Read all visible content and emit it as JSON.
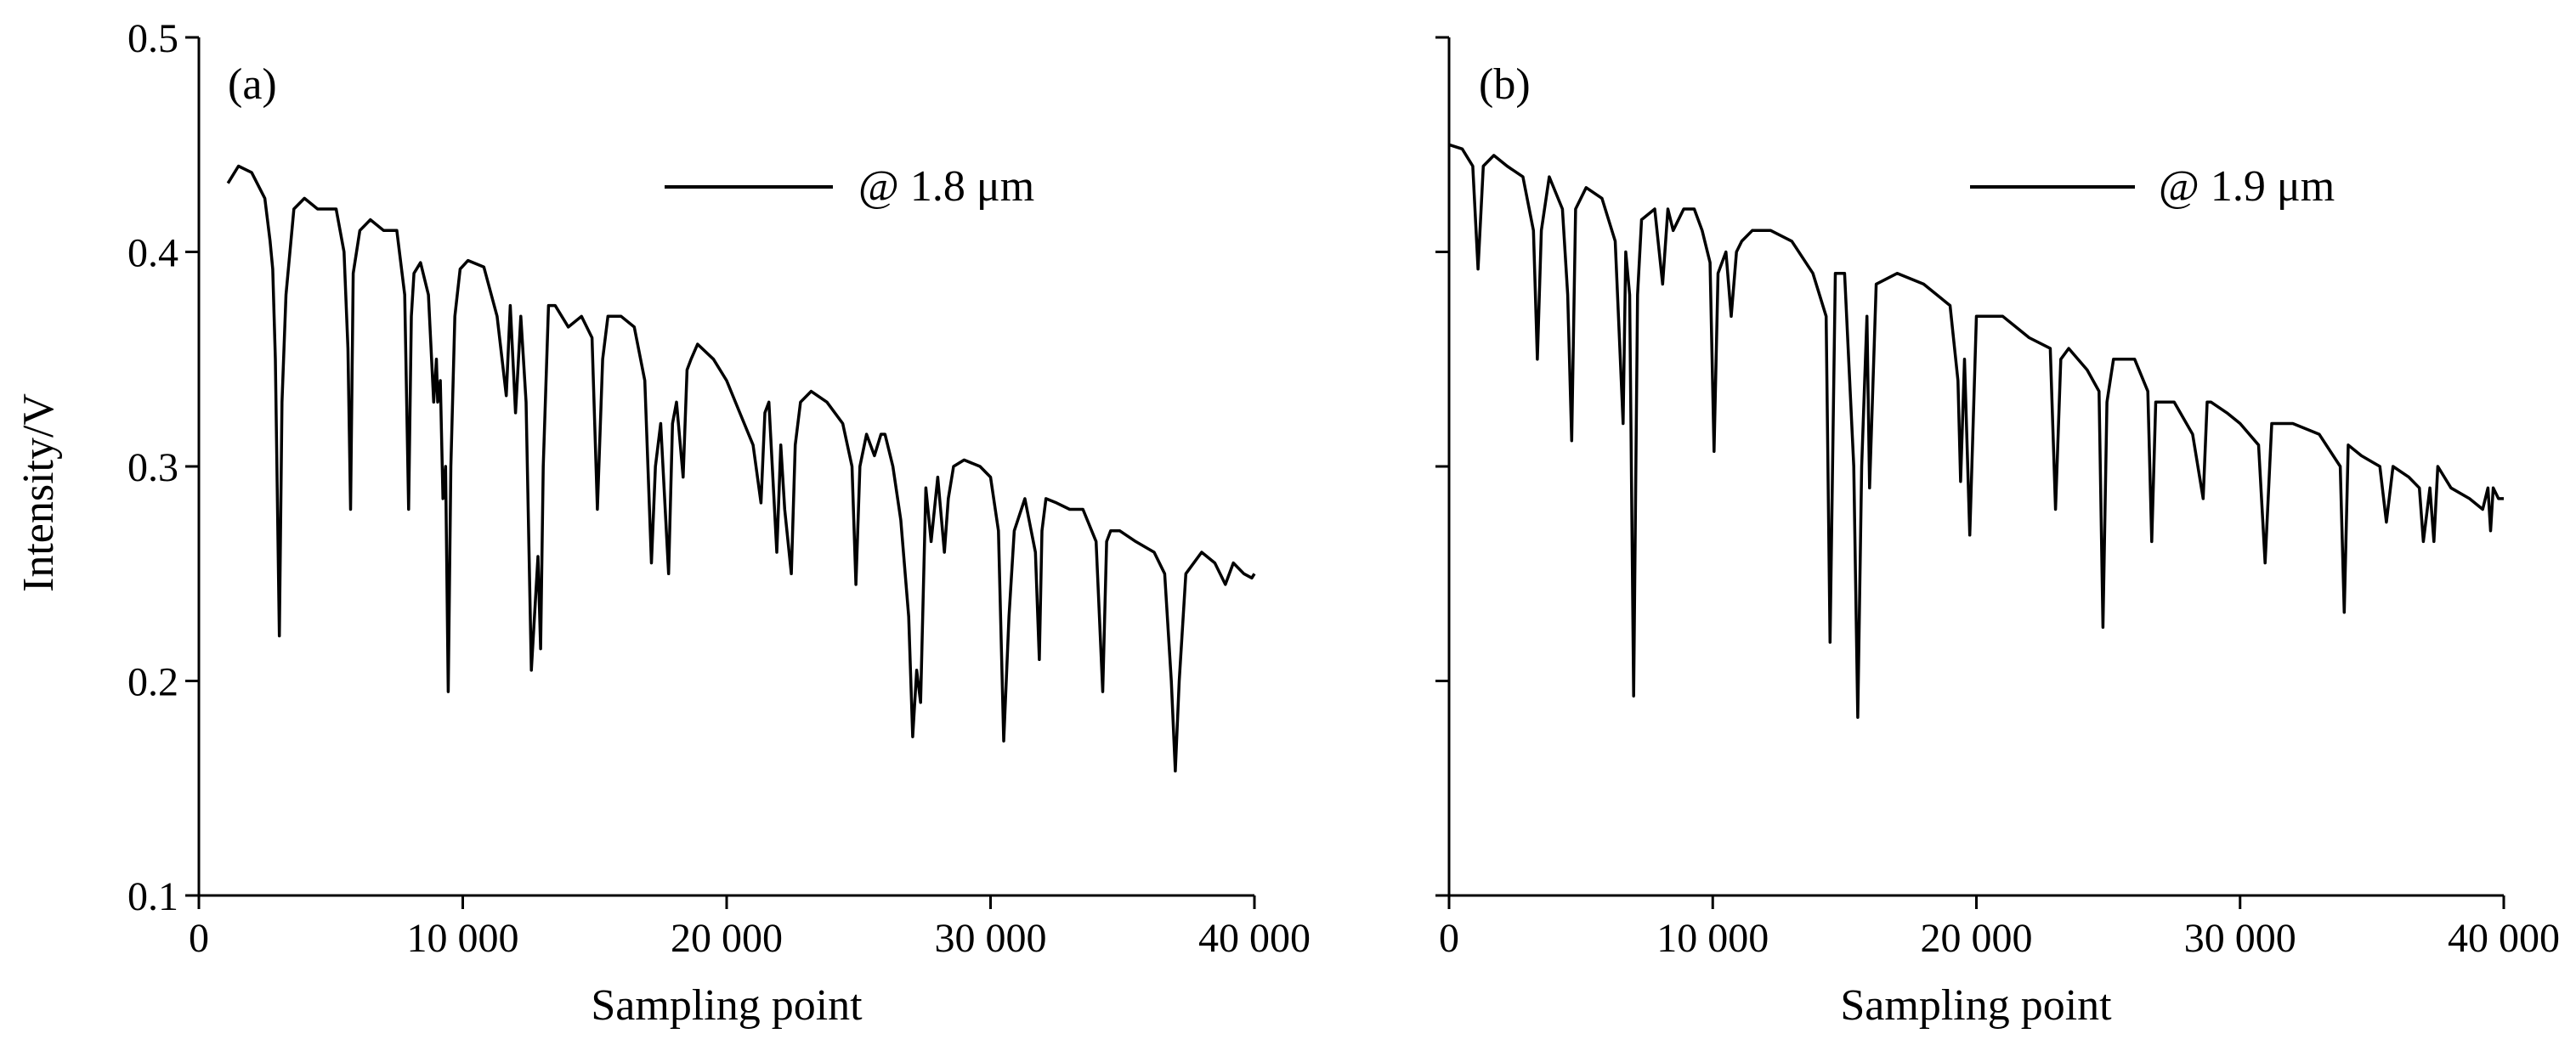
{
  "y_axis_label": "Intensity/V",
  "chart_data": [
    {
      "type": "line",
      "panel_label": "(a)",
      "xlabel": "Sampling point",
      "ylabel": "Intensity/V",
      "xlim": [
        0,
        40000
      ],
      "ylim": [
        0.1,
        0.5
      ],
      "x_ticks": [
        0,
        10000,
        20000,
        30000,
        40000
      ],
      "x_tick_labels": [
        "0",
        "10 000",
        "20 000",
        "30 000",
        "40 000"
      ],
      "y_ticks": [
        0.1,
        0.2,
        0.3,
        0.4,
        0.5
      ],
      "y_tick_labels": [
        "0.1",
        "0.2",
        "0.3",
        "0.4",
        "0.5"
      ],
      "grid": false,
      "legend": {
        "position": "top-right",
        "entries": [
          "@ 1.8 μm"
        ]
      },
      "color": "#000000",
      "series": [
        {
          "name": "@ 1.8 μm",
          "x": [
            1100,
            1500,
            2000,
            2500,
            2700,
            2800,
            2900,
            3050,
            3150,
            3300,
            3600,
            4000,
            4500,
            5200,
            5500,
            5650,
            5750,
            5850,
            6100,
            6500,
            7000,
            7500,
            7800,
            7950,
            8050,
            8150,
            8400,
            8700,
            8900,
            9000,
            9050,
            9150,
            9250,
            9350,
            9450,
            9550,
            9700,
            9900,
            10200,
            10800,
            11300,
            11650,
            11800,
            12000,
            12200,
            12400,
            12600,
            12850,
            12950,
            13050,
            13250,
            13500,
            14000,
            14500,
            14900,
            15100,
            15300,
            15500,
            16000,
            16500,
            16900,
            17150,
            17300,
            17500,
            17800,
            17950,
            18100,
            18350,
            18500,
            18650,
            18900,
            19500,
            20000,
            20500,
            21000,
            21300,
            21450,
            21600,
            21900,
            22050,
            22200,
            22450,
            22600,
            22800,
            23200,
            23800,
            24400,
            24750,
            24900,
            25050,
            25300,
            25600,
            25850,
            26000,
            26300,
            26600,
            26900,
            27050,
            27200,
            27350,
            27550,
            27750,
            28000,
            28250,
            28400,
            28600,
            29000,
            29600,
            30000,
            30300,
            30500,
            30700,
            30900,
            31300,
            31700,
            31850,
            31950,
            32100,
            32500,
            33000,
            33500,
            34000,
            34250,
            34400,
            34550,
            34900,
            35500,
            36200,
            36600,
            36850,
            37000,
            37150,
            37400,
            38000,
            38500,
            38900,
            39200,
            39600,
            39900,
            40000
          ],
          "values": [
            0.432,
            0.44,
            0.437,
            0.425,
            0.405,
            0.392,
            0.35,
            0.221,
            0.33,
            0.38,
            0.42,
            0.425,
            0.42,
            0.42,
            0.4,
            0.355,
            0.28,
            0.39,
            0.41,
            0.415,
            0.41,
            0.41,
            0.38,
            0.28,
            0.37,
            0.39,
            0.395,
            0.38,
            0.33,
            0.35,
            0.33,
            0.34,
            0.285,
            0.3,
            0.195,
            0.3,
            0.37,
            0.392,
            0.396,
            0.393,
            0.37,
            0.333,
            0.375,
            0.325,
            0.37,
            0.33,
            0.205,
            0.258,
            0.215,
            0.3,
            0.375,
            0.375,
            0.365,
            0.37,
            0.36,
            0.28,
            0.35,
            0.37,
            0.37,
            0.365,
            0.34,
            0.255,
            0.3,
            0.32,
            0.25,
            0.32,
            0.33,
            0.295,
            0.345,
            0.35,
            0.357,
            0.35,
            0.34,
            0.325,
            0.31,
            0.283,
            0.325,
            0.33,
            0.26,
            0.31,
            0.28,
            0.25,
            0.31,
            0.33,
            0.335,
            0.33,
            0.32,
            0.3,
            0.245,
            0.3,
            0.315,
            0.305,
            0.315,
            0.315,
            0.3,
            0.275,
            0.23,
            0.174,
            0.205,
            0.19,
            0.29,
            0.265,
            0.295,
            0.26,
            0.285,
            0.3,
            0.303,
            0.3,
            0.295,
            0.27,
            0.172,
            0.23,
            0.27,
            0.285,
            0.26,
            0.21,
            0.27,
            0.285,
            0.283,
            0.28,
            0.28,
            0.265,
            0.195,
            0.265,
            0.27,
            0.27,
            0.265,
            0.26,
            0.25,
            0.2,
            0.158,
            0.2,
            0.25,
            0.26,
            0.255,
            0.245,
            0.255,
            0.25,
            0.248,
            0.25
          ]
        }
      ]
    },
    {
      "type": "line",
      "panel_label": "(b)",
      "xlabel": "Sampling point",
      "ylabel": "",
      "xlim": [
        0,
        40000
      ],
      "ylim": [
        0.1,
        0.5
      ],
      "x_ticks": [
        0,
        10000,
        20000,
        30000,
        40000
      ],
      "x_tick_labels": [
        "0",
        "10 000",
        "20 000",
        "30 000",
        "40 000"
      ],
      "y_ticks": [
        0.1,
        0.2,
        0.3,
        0.4,
        0.5
      ],
      "y_tick_labels": [
        "",
        "",
        "",
        "",
        ""
      ],
      "grid": false,
      "legend": {
        "position": "top-right",
        "entries": [
          "@ 1.9 μm"
        ]
      },
      "color": "#000000",
      "series": [
        {
          "name": "@ 1.9 μm",
          "x": [
            0,
            500,
            900,
            1100,
            1300,
            1700,
            2200,
            2800,
            3200,
            3350,
            3500,
            3800,
            4300,
            4500,
            4650,
            4800,
            5200,
            5800,
            6300,
            6600,
            6700,
            6850,
            7000,
            7150,
            7300,
            7800,
            8100,
            8300,
            8500,
            8900,
            9300,
            9600,
            9900,
            10050,
            10200,
            10500,
            10700,
            10900,
            11100,
            11500,
            12200,
            13000,
            13800,
            14300,
            14450,
            14650,
            15000,
            15350,
            15500,
            15650,
            15850,
            15950,
            16200,
            17000,
            18000,
            19000,
            19300,
            19400,
            19550,
            19750,
            20000,
            21000,
            22000,
            22800,
            23000,
            23200,
            23500,
            24200,
            24650,
            24800,
            24950,
            25200,
            26000,
            26500,
            26650,
            26800,
            27500,
            28200,
            28600,
            28750,
            28900,
            29500,
            30000,
            30700,
            30950,
            31200,
            32000,
            33000,
            33800,
            33950,
            34100,
            34600,
            35300,
            35550,
            35800,
            36400,
            36800,
            36950,
            37200,
            37350,
            37500,
            38000,
            38700,
            39200,
            39400,
            39500,
            39600,
            39800,
            40000
          ],
          "values": [
            0.45,
            0.448,
            0.44,
            0.392,
            0.44,
            0.445,
            0.44,
            0.435,
            0.41,
            0.35,
            0.41,
            0.435,
            0.42,
            0.38,
            0.312,
            0.42,
            0.43,
            0.425,
            0.405,
            0.32,
            0.4,
            0.38,
            0.193,
            0.38,
            0.415,
            0.42,
            0.385,
            0.42,
            0.41,
            0.42,
            0.42,
            0.41,
            0.395,
            0.307,
            0.39,
            0.4,
            0.37,
            0.4,
            0.405,
            0.41,
            0.41,
            0.405,
            0.39,
            0.37,
            0.218,
            0.39,
            0.39,
            0.3,
            0.183,
            0.3,
            0.37,
            0.29,
            0.385,
            0.39,
            0.385,
            0.375,
            0.34,
            0.293,
            0.35,
            0.268,
            0.37,
            0.37,
            0.36,
            0.355,
            0.28,
            0.35,
            0.355,
            0.345,
            0.335,
            0.225,
            0.33,
            0.35,
            0.35,
            0.335,
            0.265,
            0.33,
            0.33,
            0.315,
            0.285,
            0.33,
            0.33,
            0.325,
            0.32,
            0.31,
            0.255,
            0.32,
            0.32,
            0.315,
            0.3,
            0.232,
            0.31,
            0.305,
            0.3,
            0.274,
            0.3,
            0.295,
            0.29,
            0.265,
            0.29,
            0.265,
            0.3,
            0.29,
            0.285,
            0.28,
            0.29,
            0.27,
            0.29,
            0.285,
            0.285
          ]
        }
      ]
    }
  ]
}
